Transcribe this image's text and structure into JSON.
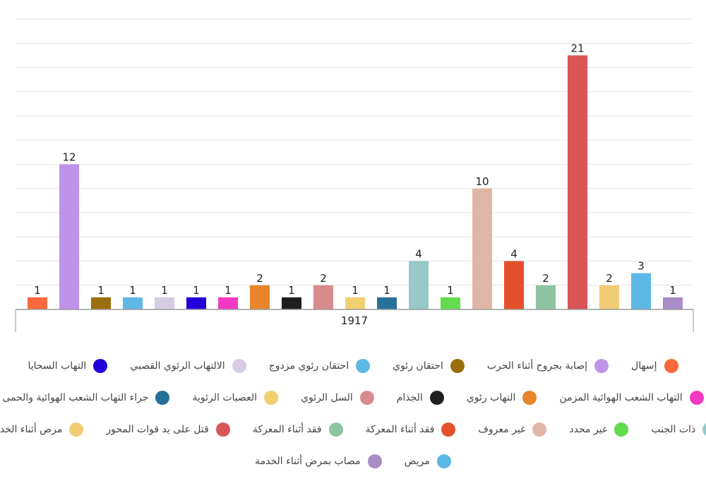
{
  "chart_data": {
    "type": "bar",
    "title": "",
    "xlabel": "",
    "ylabel": "",
    "categories": [
      "1917"
    ],
    "ylim": [
      0,
      24
    ],
    "grid": true,
    "legend_placement": "bottom",
    "series": [
      {
        "name": "إسهال",
        "value": 1,
        "color": "#f9693b"
      },
      {
        "name": "إصابة بجروح أثناء الحرب",
        "value": 12,
        "color": "#c093ea"
      },
      {
        "name": "احتقان رئوي",
        "value": 1,
        "color": "#9a6e0a"
      },
      {
        "name": "احتقان رئوي مزدوج",
        "value": 1,
        "color": "#5fb7e5"
      },
      {
        "name": "الالتهاب الرئوي القصبي",
        "value": 1,
        "color": "#d6cde4"
      },
      {
        "name": "التهاب السحايا",
        "value": 1,
        "color": "#2200d9"
      },
      {
        "name": "التهاب الشعب الهوائية المزمن",
        "value": 1,
        "color": "#f338c3"
      },
      {
        "name": "التهاب رئوي",
        "value": 2,
        "color": "#e8852a"
      },
      {
        "name": "الجذام",
        "value": 1,
        "color": "#1f1f1f"
      },
      {
        "name": "السل الرئوي",
        "value": 2,
        "color": "#d88a8c"
      },
      {
        "name": "العصبات الرئوية",
        "value": 1,
        "color": "#f0cf6f"
      },
      {
        "name": "جراء التهاب الشعب الهوائية والحمى",
        "value": 1,
        "color": "#26709a"
      },
      {
        "name": "ذات الجنب",
        "value": 4,
        "color": "#96c9c8"
      },
      {
        "name": "غير محدد",
        "value": 1,
        "color": "#62dc4e"
      },
      {
        "name": "غير معروف",
        "value": 10,
        "color": "#dfb6a5"
      },
      {
        "name": "فقد أثناء المعركة",
        "value": 4,
        "color": "#e4502b"
      },
      {
        "name": "فقد أثناء المعركة",
        "value": 2,
        "color": "#8fc4a3"
      },
      {
        "name": "قتل على يد قوات المحور",
        "value": 21,
        "color": "#d95556"
      },
      {
        "name": "مرض أثناء الخدمة",
        "value": 2,
        "color": "#f1cc74"
      },
      {
        "name": "مريض",
        "value": 3,
        "color": "#5cb8e6"
      },
      {
        "name": "مصاب بمرض أثناء الخدمة",
        "value": 1,
        "color": "#a98bc5"
      }
    ]
  },
  "legend_rows": [
    [
      0,
      1,
      2,
      3,
      4,
      5
    ],
    [
      6,
      7,
      8,
      9,
      10,
      11
    ],
    [
      12,
      13,
      14,
      15,
      16,
      17,
      18
    ],
    [
      19,
      20
    ]
  ]
}
